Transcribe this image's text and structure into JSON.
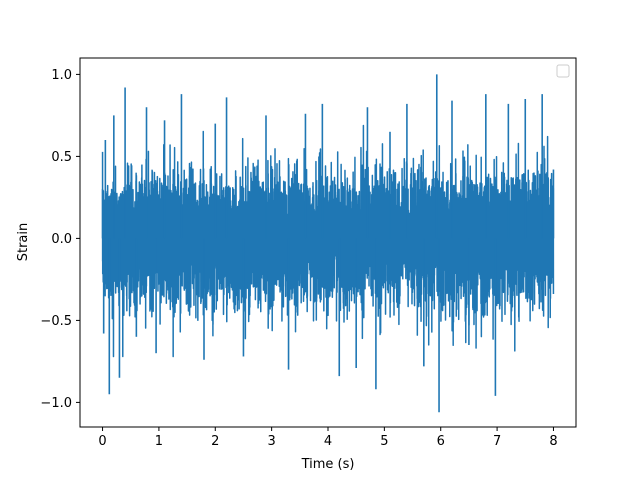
{
  "chart_data": {
    "type": "line",
    "title": "",
    "xlabel": "Time (s)",
    "ylabel": "Strain",
    "xlim": [
      -0.4,
      8.4
    ],
    "ylim": [
      -1.15,
      1.1
    ],
    "xticks": [
      0,
      1,
      2,
      3,
      4,
      5,
      6,
      7,
      8
    ],
    "xtick_labels": [
      "0",
      "1",
      "2",
      "3",
      "4",
      "5",
      "6",
      "7",
      "8"
    ],
    "yticks": [
      -1.0,
      -0.5,
      0.0,
      0.5,
      1.0
    ],
    "ytick_labels": [
      "−1.0",
      "−0.5",
      "0.0",
      "0.5",
      "1.0"
    ],
    "grid": false,
    "legend": {
      "placement": "top-right",
      "entries": []
    },
    "series": [
      {
        "color": "#1f77b4",
        "sampling": "noise-like waveform, dense samples from 0 to 8 s; key extrema read from the plot",
        "x": [
          0.0,
          0.02,
          0.05,
          0.12,
          0.2,
          0.3,
          0.4,
          0.6,
          0.78,
          0.95,
          1.1,
          1.4,
          1.8,
          2.0,
          2.2,
          2.5,
          2.9,
          3.3,
          3.6,
          3.9,
          4.2,
          4.5,
          4.7,
          4.85,
          5.1,
          5.4,
          5.7,
          5.93,
          5.97,
          6.2,
          6.5,
          6.8,
          6.97,
          7.2,
          7.5,
          7.8,
          8.0
        ],
        "y": [
          0.3,
          -0.58,
          0.6,
          -0.95,
          0.75,
          -0.85,
          0.92,
          -0.6,
          0.8,
          -0.7,
          0.72,
          0.88,
          -0.74,
          0.7,
          0.86,
          -0.72,
          0.75,
          -0.8,
          0.76,
          0.82,
          -0.84,
          -0.79,
          0.8,
          -0.92,
          0.65,
          0.82,
          -0.78,
          1.0,
          -1.06,
          0.84,
          -0.65,
          0.88,
          -0.96,
          0.82,
          0.85,
          0.88,
          0.42
        ]
      }
    ]
  }
}
